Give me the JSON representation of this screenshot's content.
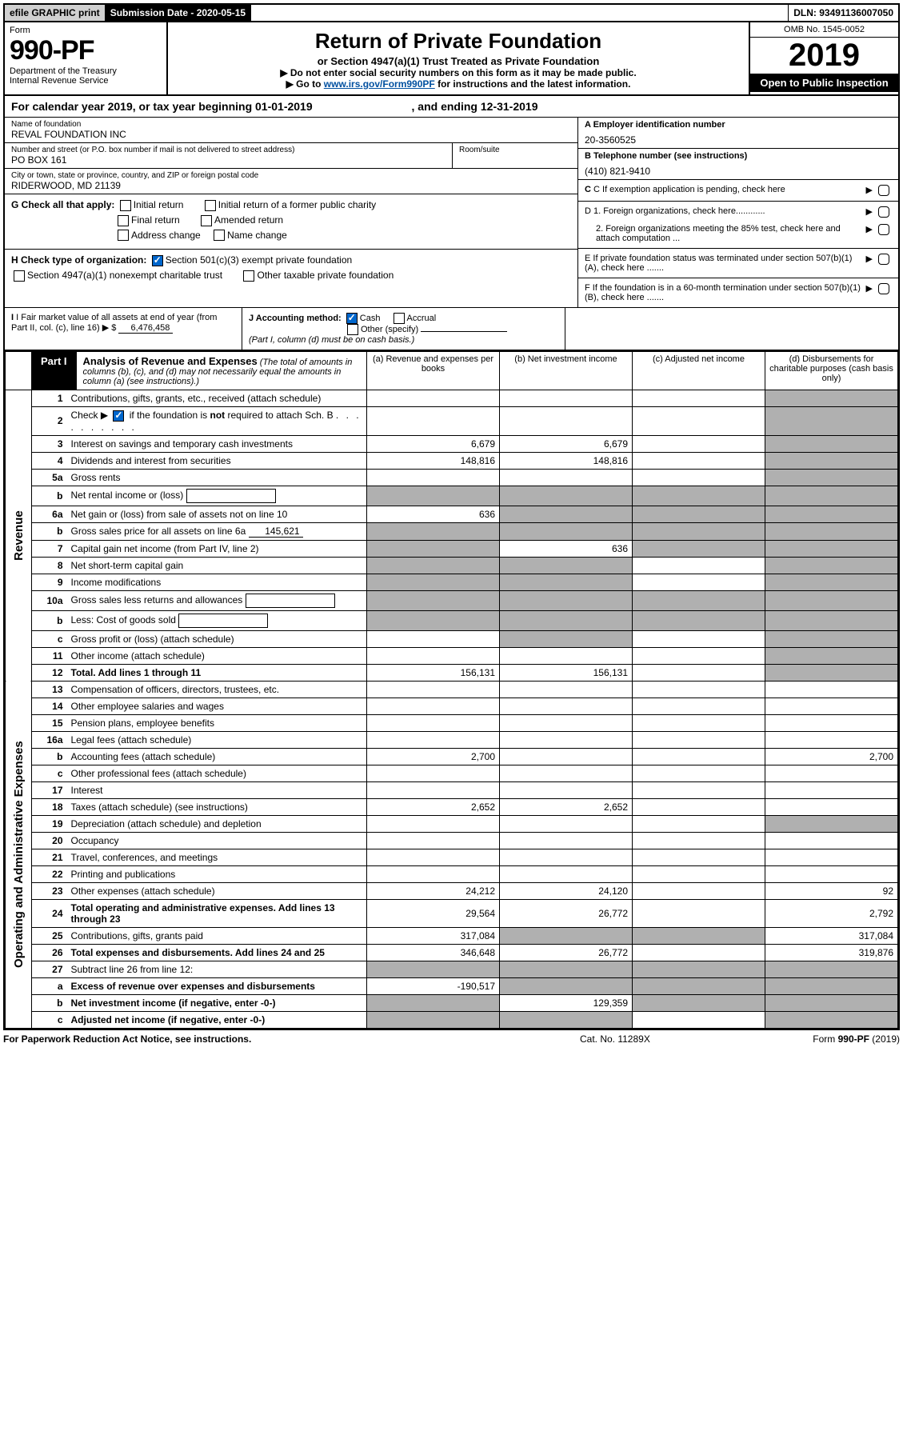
{
  "topBar": {
    "efile": "efile GRAPHIC print",
    "submission": "Submission Date - 2020-05-15",
    "dln": "DLN: 93491136007050"
  },
  "header": {
    "formWord": "Form",
    "formNumber": "990-PF",
    "dept": "Department of the Treasury\nInternal Revenue Service",
    "title": "Return of Private Foundation",
    "subtitle": "or Section 4947(a)(1) Trust Treated as Private Foundation",
    "instr1": "▶ Do not enter social security numbers on this form as it may be made public.",
    "instr2_pre": "▶ Go to ",
    "instr2_link": "www.irs.gov/Form990PF",
    "instr2_post": " for instructions and the latest information.",
    "omb": "OMB No. 1545-0052",
    "year": "2019",
    "openPublic": "Open to Public Inspection"
  },
  "calYear": {
    "text_pre": "For calendar year 2019, or tax year beginning ",
    "begin": "01-01-2019",
    "mid": " , and ending ",
    "end": "12-31-2019"
  },
  "entity": {
    "nameLabel": "Name of foundation",
    "name": "REVAL FOUNDATION INC",
    "addrLabel": "Number and street (or P.O. box number if mail is not delivered to street address)",
    "addr": "PO BOX 161",
    "roomLabel": "Room/suite",
    "cityLabel": "City or town, state or province, country, and ZIP or foreign postal code",
    "city": "RIDERWOOD, MD  21139",
    "einLabel": "A Employer identification number",
    "ein": "20-3560525",
    "phoneLabel": "B Telephone number (see instructions)",
    "phone": "(410) 821-9410",
    "cLabel": "C If exemption application is pending, check here"
  },
  "gCheck": {
    "label": "G Check all that apply:",
    "opts": [
      "Initial return",
      "Initial return of a former public charity",
      "Final return",
      "Amended return",
      "Address change",
      "Name change"
    ]
  },
  "hCheck": {
    "label": "H Check type of organization:",
    "opt1": "Section 501(c)(3) exempt private foundation",
    "opt2": "Section 4947(a)(1) nonexempt charitable trust",
    "opt3": "Other taxable private foundation"
  },
  "dSection": {
    "d1": "D 1. Foreign organizations, check here............",
    "d2": "2. Foreign organizations meeting the 85% test, check here and attach computation ...",
    "e": "E  If private foundation status was terminated under section 507(b)(1)(A), check here .......",
    "f": "F  If the foundation is in a 60-month termination under section 507(b)(1)(B), check here ......."
  },
  "iSection": {
    "label": "I Fair market value of all assets at end of year (from Part II, col. (c), line 16) ▶ $",
    "value": "6,476,458"
  },
  "jSection": {
    "label": "J Accounting method:",
    "cash": "Cash",
    "accrual": "Accrual",
    "other": "Other (specify)",
    "note": "(Part I, column (d) must be on cash basis.)"
  },
  "part1": {
    "label": "Part I",
    "title": "Analysis of Revenue and Expenses",
    "titleNote": "(The total of amounts in columns (b), (c), and (d) may not necessarily equal the amounts in column (a) (see instructions).)",
    "colA": "(a)  Revenue and expenses per books",
    "colB": "(b)  Net investment income",
    "colC": "(c)  Adjusted net income",
    "colD": "(d)  Disbursements for charitable purposes (cash basis only)"
  },
  "sideLabels": {
    "revenue": "Revenue",
    "expenses": "Operating and Administrative Expenses"
  },
  "lines": [
    {
      "no": "1",
      "label": "Contributions, gifts, grants, etc., received (attach schedule)",
      "a": "",
      "b": "",
      "c": "",
      "d": "shade"
    },
    {
      "no": "2",
      "label": "Check ▶ ☑ if the foundation is not required to attach Sch. B",
      "a": "",
      "b": "",
      "c": "",
      "d": "shade",
      "checked": true
    },
    {
      "no": "3",
      "label": "Interest on savings and temporary cash investments",
      "a": "6,679",
      "b": "6,679",
      "c": "",
      "d": "shade"
    },
    {
      "no": "4",
      "label": "Dividends and interest from securities",
      "a": "148,816",
      "b": "148,816",
      "c": "",
      "d": "shade"
    },
    {
      "no": "5a",
      "label": "Gross rents",
      "a": "",
      "b": "",
      "c": "",
      "d": "shade"
    },
    {
      "no": "b",
      "label": "Net rental income or (loss)",
      "a": "shade",
      "b": "shade",
      "c": "shade",
      "d": "shade",
      "inline": true
    },
    {
      "no": "6a",
      "label": "Net gain or (loss) from sale of assets not on line 10",
      "a": "636",
      "b": "shade",
      "c": "shade",
      "d": "shade"
    },
    {
      "no": "b",
      "label": "Gross sales price for all assets on line 6a",
      "a": "shade",
      "b": "shade",
      "c": "shade",
      "d": "shade",
      "inlineVal": "145,621"
    },
    {
      "no": "7",
      "label": "Capital gain net income (from Part IV, line 2)",
      "a": "shade",
      "b": "636",
      "c": "shade",
      "d": "shade"
    },
    {
      "no": "8",
      "label": "Net short-term capital gain",
      "a": "shade",
      "b": "shade",
      "c": "",
      "d": "shade"
    },
    {
      "no": "9",
      "label": "Income modifications",
      "a": "shade",
      "b": "shade",
      "c": "",
      "d": "shade"
    },
    {
      "no": "10a",
      "label": "Gross sales less returns and allowances",
      "a": "shade",
      "b": "shade",
      "c": "shade",
      "d": "shade",
      "inline": true
    },
    {
      "no": "b",
      "label": "Less: Cost of goods sold",
      "a": "shade",
      "b": "shade",
      "c": "shade",
      "d": "shade",
      "inline": true
    },
    {
      "no": "c",
      "label": "Gross profit or (loss) (attach schedule)",
      "a": "",
      "b": "shade",
      "c": "",
      "d": "shade"
    },
    {
      "no": "11",
      "label": "Other income (attach schedule)",
      "a": "",
      "b": "",
      "c": "",
      "d": "shade"
    },
    {
      "no": "12",
      "label": "Total. Add lines 1 through 11",
      "a": "156,131",
      "b": "156,131",
      "c": "",
      "d": "shade",
      "bold": true
    }
  ],
  "expLines": [
    {
      "no": "13",
      "label": "Compensation of officers, directors, trustees, etc.",
      "a": "",
      "b": "",
      "c": "",
      "d": ""
    },
    {
      "no": "14",
      "label": "Other employee salaries and wages",
      "a": "",
      "b": "",
      "c": "",
      "d": ""
    },
    {
      "no": "15",
      "label": "Pension plans, employee benefits",
      "a": "",
      "b": "",
      "c": "",
      "d": ""
    },
    {
      "no": "16a",
      "label": "Legal fees (attach schedule)",
      "a": "",
      "b": "",
      "c": "",
      "d": ""
    },
    {
      "no": "b",
      "label": "Accounting fees (attach schedule)",
      "a": "2,700",
      "b": "",
      "c": "",
      "d": "2,700"
    },
    {
      "no": "c",
      "label": "Other professional fees (attach schedule)",
      "a": "",
      "b": "",
      "c": "",
      "d": ""
    },
    {
      "no": "17",
      "label": "Interest",
      "a": "",
      "b": "",
      "c": "",
      "d": ""
    },
    {
      "no": "18",
      "label": "Taxes (attach schedule) (see instructions)",
      "a": "2,652",
      "b": "2,652",
      "c": "",
      "d": ""
    },
    {
      "no": "19",
      "label": "Depreciation (attach schedule) and depletion",
      "a": "",
      "b": "",
      "c": "",
      "d": "shade"
    },
    {
      "no": "20",
      "label": "Occupancy",
      "a": "",
      "b": "",
      "c": "",
      "d": ""
    },
    {
      "no": "21",
      "label": "Travel, conferences, and meetings",
      "a": "",
      "b": "",
      "c": "",
      "d": ""
    },
    {
      "no": "22",
      "label": "Printing and publications",
      "a": "",
      "b": "",
      "c": "",
      "d": ""
    },
    {
      "no": "23",
      "label": "Other expenses (attach schedule)",
      "a": "24,212",
      "b": "24,120",
      "c": "",
      "d": "92"
    },
    {
      "no": "24",
      "label": "Total operating and administrative expenses. Add lines 13 through 23",
      "a": "29,564",
      "b": "26,772",
      "c": "",
      "d": "2,792",
      "bold": true
    },
    {
      "no": "25",
      "label": "Contributions, gifts, grants paid",
      "a": "317,084",
      "b": "shade",
      "c": "shade",
      "d": "317,084"
    },
    {
      "no": "26",
      "label": "Total expenses and disbursements. Add lines 24 and 25",
      "a": "346,648",
      "b": "26,772",
      "c": "",
      "d": "319,876",
      "bold": true
    },
    {
      "no": "27",
      "label": "Subtract line 26 from line 12:",
      "a": "shade",
      "b": "shade",
      "c": "shade",
      "d": "shade"
    },
    {
      "no": "a",
      "label": "Excess of revenue over expenses and disbursements",
      "a": "-190,517",
      "b": "shade",
      "c": "shade",
      "d": "shade",
      "bold": true
    },
    {
      "no": "b",
      "label": "Net investment income (if negative, enter -0-)",
      "a": "shade",
      "b": "129,359",
      "c": "shade",
      "d": "shade",
      "bold": true
    },
    {
      "no": "c",
      "label": "Adjusted net income (if negative, enter -0-)",
      "a": "shade",
      "b": "shade",
      "c": "",
      "d": "shade",
      "bold": true
    }
  ],
  "footer": {
    "left": "For Paperwork Reduction Act Notice, see instructions.",
    "mid": "Cat. No. 11289X",
    "right": "Form 990-PF (2019)"
  }
}
